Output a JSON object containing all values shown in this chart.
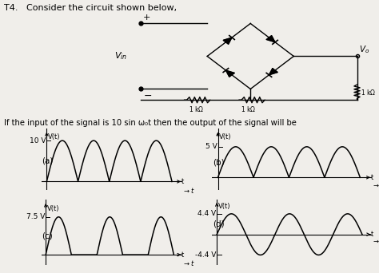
{
  "title_text": "T4.   Consider the circuit shown below,",
  "input_text": "If the input of the signal is 10 sin ω₀t then the output of the signal will be",
  "bg_color": "#f0eeea",
  "plots": [
    {
      "label": "(a)",
      "voltage": "10 V",
      "type": "fullwave_rect",
      "amplitude": 10,
      "ymin": -2,
      "ymax": 13,
      "cycles": 2.0
    },
    {
      "label": "(b)",
      "voltage": "5 V",
      "type": "fullwave_rect",
      "amplitude": 5,
      "ymin": -2,
      "ymax": 8,
      "cycles": 2.0
    },
    {
      "label": "(c)",
      "voltage": "7.5 V",
      "type": "halfwave_pos",
      "amplitude": 7.5,
      "ymin": -2,
      "ymax": 11,
      "cycles": 2.5
    },
    {
      "label": "(d)",
      "voltage": "4.4 V",
      "type": "sine_full",
      "amplitude": 4.4,
      "ymin": -6.5,
      "ymax": 7.5,
      "neg_label": "-4.4 V",
      "cycles": 2.5
    }
  ],
  "lw_signal": 1.1,
  "lw_axis": 0.8
}
